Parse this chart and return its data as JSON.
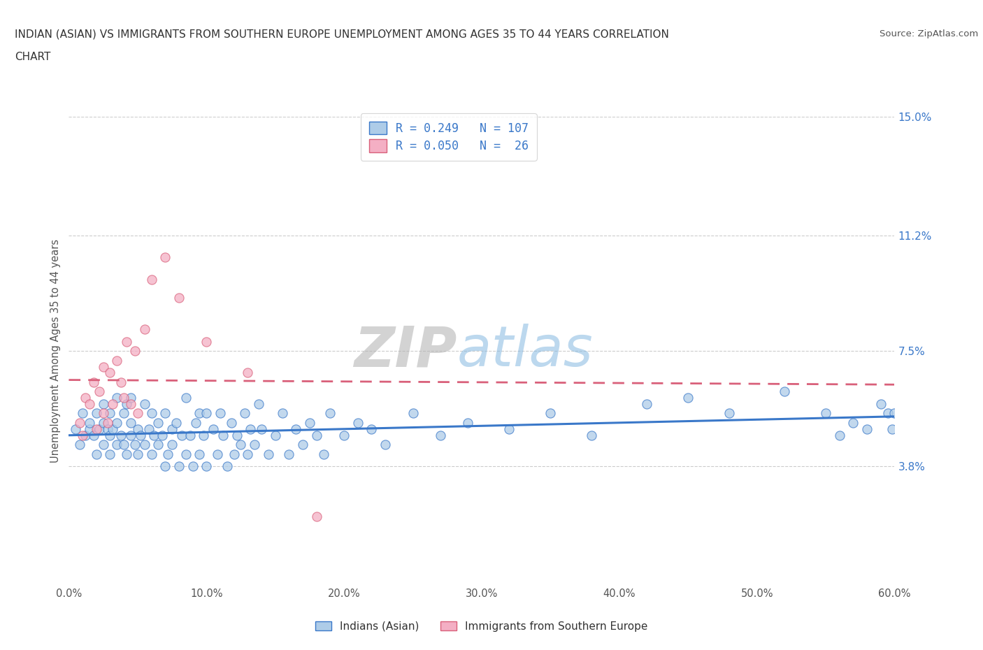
{
  "title_line1": "INDIAN (ASIAN) VS IMMIGRANTS FROM SOUTHERN EUROPE UNEMPLOYMENT AMONG AGES 35 TO 44 YEARS CORRELATION",
  "title_line2": "CHART",
  "source_text": "Source: ZipAtlas.com",
  "ylabel": "Unemployment Among Ages 35 to 44 years",
  "xlim": [
    0.0,
    0.6
  ],
  "ylim": [
    0.0,
    0.15
  ],
  "yticks": [
    0.038,
    0.075,
    0.112,
    0.15
  ],
  "ytick_labels": [
    "3.8%",
    "7.5%",
    "11.2%",
    "15.0%"
  ],
  "xticks": [
    0.0,
    0.1,
    0.2,
    0.3,
    0.4,
    0.5,
    0.6
  ],
  "xtick_labels": [
    "0.0%",
    "10.0%",
    "20.0%",
    "30.0%",
    "40.0%",
    "50.0%",
    "60.0%"
  ],
  "indian_R": 0.249,
  "indian_N": 107,
  "southern_R": 0.05,
  "southern_N": 26,
  "indian_color": "#aecce8",
  "southern_color": "#f4afc4",
  "indian_line_color": "#3a78c9",
  "southern_line_color": "#d9607a",
  "watermark_zip": "ZIP",
  "watermark_atlas": "atlas",
  "legend_label_indian": "Indians (Asian)",
  "legend_label_southern": "Immigrants from Southern Europe",
  "indian_x": [
    0.005,
    0.008,
    0.01,
    0.012,
    0.015,
    0.015,
    0.018,
    0.02,
    0.02,
    0.022,
    0.025,
    0.025,
    0.025,
    0.028,
    0.03,
    0.03,
    0.03,
    0.032,
    0.035,
    0.035,
    0.035,
    0.038,
    0.04,
    0.04,
    0.042,
    0.042,
    0.045,
    0.045,
    0.045,
    0.048,
    0.05,
    0.05,
    0.052,
    0.055,
    0.055,
    0.058,
    0.06,
    0.06,
    0.062,
    0.065,
    0.065,
    0.068,
    0.07,
    0.07,
    0.072,
    0.075,
    0.075,
    0.078,
    0.08,
    0.082,
    0.085,
    0.085,
    0.088,
    0.09,
    0.092,
    0.095,
    0.095,
    0.098,
    0.1,
    0.1,
    0.105,
    0.108,
    0.11,
    0.112,
    0.115,
    0.118,
    0.12,
    0.122,
    0.125,
    0.128,
    0.13,
    0.132,
    0.135,
    0.138,
    0.14,
    0.145,
    0.15,
    0.155,
    0.16,
    0.165,
    0.17,
    0.175,
    0.18,
    0.185,
    0.19,
    0.2,
    0.21,
    0.22,
    0.23,
    0.25,
    0.27,
    0.29,
    0.32,
    0.35,
    0.38,
    0.42,
    0.45,
    0.48,
    0.52,
    0.55,
    0.56,
    0.57,
    0.58,
    0.59,
    0.595,
    0.598,
    0.6
  ],
  "indian_y": [
    0.05,
    0.045,
    0.055,
    0.048,
    0.05,
    0.052,
    0.048,
    0.055,
    0.042,
    0.05,
    0.052,
    0.045,
    0.058,
    0.05,
    0.048,
    0.042,
    0.055,
    0.05,
    0.045,
    0.052,
    0.06,
    0.048,
    0.045,
    0.055,
    0.042,
    0.058,
    0.048,
    0.052,
    0.06,
    0.045,
    0.05,
    0.042,
    0.048,
    0.045,
    0.058,
    0.05,
    0.042,
    0.055,
    0.048,
    0.045,
    0.052,
    0.048,
    0.038,
    0.055,
    0.042,
    0.05,
    0.045,
    0.052,
    0.038,
    0.048,
    0.042,
    0.06,
    0.048,
    0.038,
    0.052,
    0.042,
    0.055,
    0.048,
    0.038,
    0.055,
    0.05,
    0.042,
    0.055,
    0.048,
    0.038,
    0.052,
    0.042,
    0.048,
    0.045,
    0.055,
    0.042,
    0.05,
    0.045,
    0.058,
    0.05,
    0.042,
    0.048,
    0.055,
    0.042,
    0.05,
    0.045,
    0.052,
    0.048,
    0.042,
    0.055,
    0.048,
    0.052,
    0.05,
    0.045,
    0.055,
    0.048,
    0.052,
    0.05,
    0.055,
    0.048,
    0.058,
    0.06,
    0.055,
    0.062,
    0.055,
    0.048,
    0.052,
    0.05,
    0.058,
    0.055,
    0.05,
    0.055
  ],
  "southern_x": [
    0.008,
    0.01,
    0.012,
    0.015,
    0.018,
    0.02,
    0.022,
    0.025,
    0.025,
    0.028,
    0.03,
    0.032,
    0.035,
    0.038,
    0.04,
    0.042,
    0.045,
    0.048,
    0.05,
    0.055,
    0.06,
    0.07,
    0.08,
    0.1,
    0.13,
    0.18
  ],
  "southern_y": [
    0.052,
    0.048,
    0.06,
    0.058,
    0.065,
    0.05,
    0.062,
    0.055,
    0.07,
    0.052,
    0.068,
    0.058,
    0.072,
    0.065,
    0.06,
    0.078,
    0.058,
    0.075,
    0.055,
    0.082,
    0.098,
    0.105,
    0.092,
    0.078,
    0.068,
    0.022
  ]
}
